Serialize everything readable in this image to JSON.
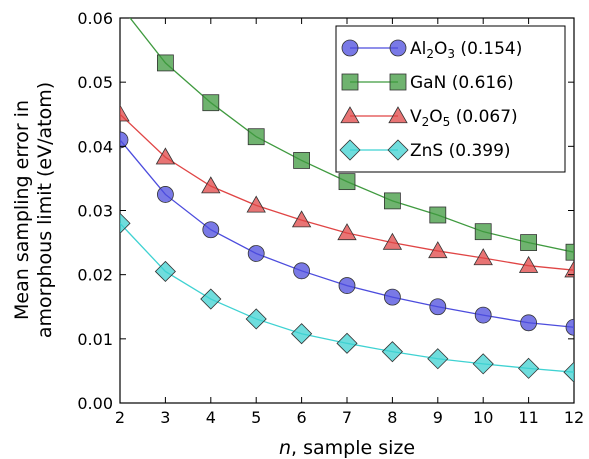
{
  "chart_data": {
    "type": "line",
    "xlabel_italic": "n",
    "xlabel_rest": ", sample size",
    "ylabel_line1": "Mean sampling error in",
    "ylabel_line2": "amorphous limit (eV/atom)",
    "xlim": [
      2,
      12
    ],
    "ylim": [
      0.0,
      0.06
    ],
    "xticks": [
      "2",
      "3",
      "4",
      "5",
      "6",
      "7",
      "8",
      "9",
      "10",
      "11",
      "12"
    ],
    "yticks": [
      "0.00",
      "0.01",
      "0.02",
      "0.03",
      "0.04",
      "0.05",
      "0.06"
    ],
    "grid": false,
    "legend_position": "top-right",
    "x": [
      2,
      3,
      4,
      5,
      6,
      7,
      8,
      9,
      10,
      11,
      12
    ],
    "series": [
      {
        "name": "Al2O3 (0.154)",
        "legend_main": "Al",
        "legend_sub1": "2",
        "legend_mid": "O",
        "legend_sub2": "3",
        "legend_tail": " (0.154)",
        "marker": "circle",
        "color": "#4c4cdd",
        "values": [
          0.041,
          0.0325,
          0.027,
          0.0233,
          0.0206,
          0.0183,
          0.0165,
          0.015,
          0.0137,
          0.0125,
          0.0118
        ]
      },
      {
        "name": "GaN (0.616)",
        "legend_main": "GaN",
        "legend_sub1": "",
        "legend_mid": "",
        "legend_sub2": "",
        "legend_tail": " (0.616)",
        "marker": "square",
        "color": "#3f9a3f",
        "values": [
          0.062,
          0.053,
          0.0468,
          0.0415,
          0.0378,
          0.0345,
          0.0315,
          0.0293,
          0.0267,
          0.025,
          0.0235
        ]
      },
      {
        "name": "V2O5 (0.067)",
        "legend_main": "V",
        "legend_sub1": "2",
        "legend_mid": "O",
        "legend_sub2": "5",
        "legend_tail": " (0.067)",
        "marker": "triangle",
        "color": "#e04545",
        "values": [
          0.045,
          0.0383,
          0.0338,
          0.0308,
          0.0285,
          0.0265,
          0.025,
          0.0237,
          0.0226,
          0.0214,
          0.0207
        ]
      },
      {
        "name": "ZnS (0.399)",
        "legend_main": "ZnS",
        "legend_sub1": "",
        "legend_mid": "",
        "legend_sub2": "",
        "legend_tail": " (0.399)",
        "marker": "diamond",
        "color": "#3fd2d2",
        "values": [
          0.028,
          0.0205,
          0.0162,
          0.0131,
          0.0108,
          0.0093,
          0.008,
          0.0069,
          0.0061,
          0.0054,
          0.0048
        ]
      }
    ]
  }
}
